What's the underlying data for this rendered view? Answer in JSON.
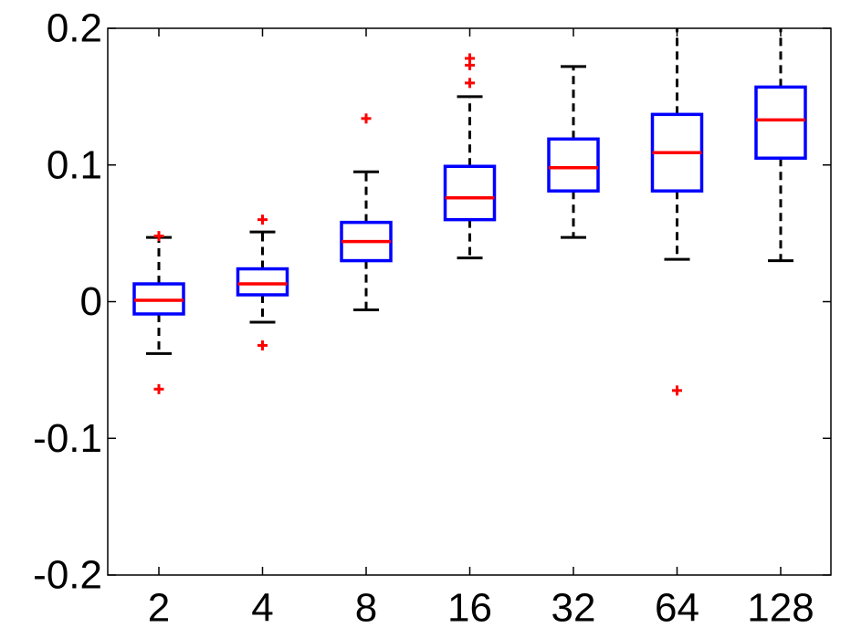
{
  "chart_data": {
    "type": "box",
    "title": "",
    "xlabel": "",
    "ylabel": "",
    "ylim": [
      -0.2,
      0.2
    ],
    "y_ticks": [
      -0.2,
      -0.1,
      0,
      0.1,
      0.2
    ],
    "y_tick_labels": [
      "-0.2",
      "-0.1",
      "0",
      "0.1",
      "0.2"
    ],
    "categories": [
      "2",
      "4",
      "8",
      "16",
      "32",
      "64",
      "128"
    ],
    "boxes": [
      {
        "category": "2",
        "whisker_low": -0.038,
        "q1": -0.009,
        "median": 0.001,
        "q3": 0.013,
        "whisker_high": 0.047,
        "outliers": [
          0.048,
          -0.064
        ]
      },
      {
        "category": "4",
        "whisker_low": -0.015,
        "q1": 0.005,
        "median": 0.013,
        "q3": 0.024,
        "whisker_high": 0.051,
        "outliers": [
          0.06,
          -0.032
        ]
      },
      {
        "category": "8",
        "whisker_low": -0.006,
        "q1": 0.03,
        "median": 0.044,
        "q3": 0.058,
        "whisker_high": 0.095,
        "outliers": [
          0.134
        ]
      },
      {
        "category": "16",
        "whisker_low": 0.032,
        "q1": 0.06,
        "median": 0.076,
        "q3": 0.099,
        "whisker_high": 0.15,
        "outliers": [
          0.16,
          0.173,
          0.178
        ]
      },
      {
        "category": "32",
        "whisker_low": 0.047,
        "q1": 0.081,
        "median": 0.098,
        "q3": 0.119,
        "whisker_high": 0.172,
        "outliers": []
      },
      {
        "category": "64",
        "whisker_low": 0.031,
        "q1": 0.081,
        "median": 0.109,
        "q3": 0.137,
        "whisker_high": 0.2,
        "outliers": [
          -0.065
        ]
      },
      {
        "category": "128",
        "whisker_low": 0.03,
        "q1": 0.105,
        "median": 0.133,
        "q3": 0.157,
        "whisker_high": 0.2,
        "outliers": []
      }
    ],
    "colors": {
      "box": "#0000ff",
      "median": "#ff0000",
      "whisker": "#000000",
      "outlier": "#ff0000"
    },
    "grid": false,
    "legend": "none"
  }
}
